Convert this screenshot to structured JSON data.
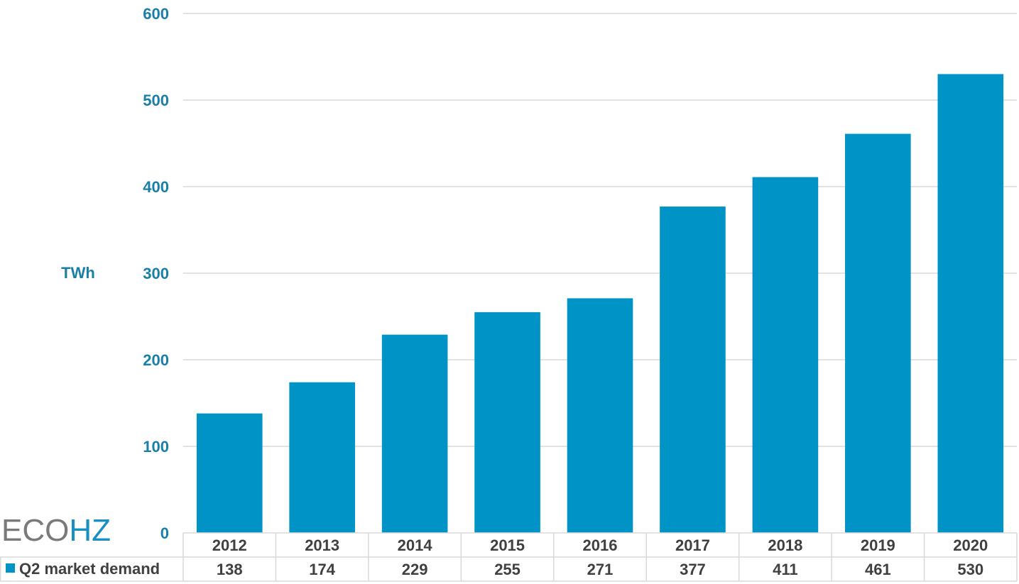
{
  "chart_data": {
    "type": "bar",
    "categories": [
      "2012",
      "2013",
      "2014",
      "2015",
      "2016",
      "2017",
      "2018",
      "2019",
      "2020"
    ],
    "series": [
      {
        "name": "Q2 market demand",
        "values": [
          138,
          174,
          229,
          255,
          271,
          377,
          411,
          461,
          530
        ]
      }
    ],
    "ylabel": "TWh",
    "ylim": [
      0,
      600
    ],
    "yticks": [
      "0",
      "100",
      "200",
      "300",
      "400",
      "500",
      "600"
    ],
    "grid": true,
    "legend": "data-table-left",
    "data_table": true,
    "bar_color": "#0094c6"
  },
  "logo": {
    "part1": "ECO",
    "part2": "HZ"
  }
}
